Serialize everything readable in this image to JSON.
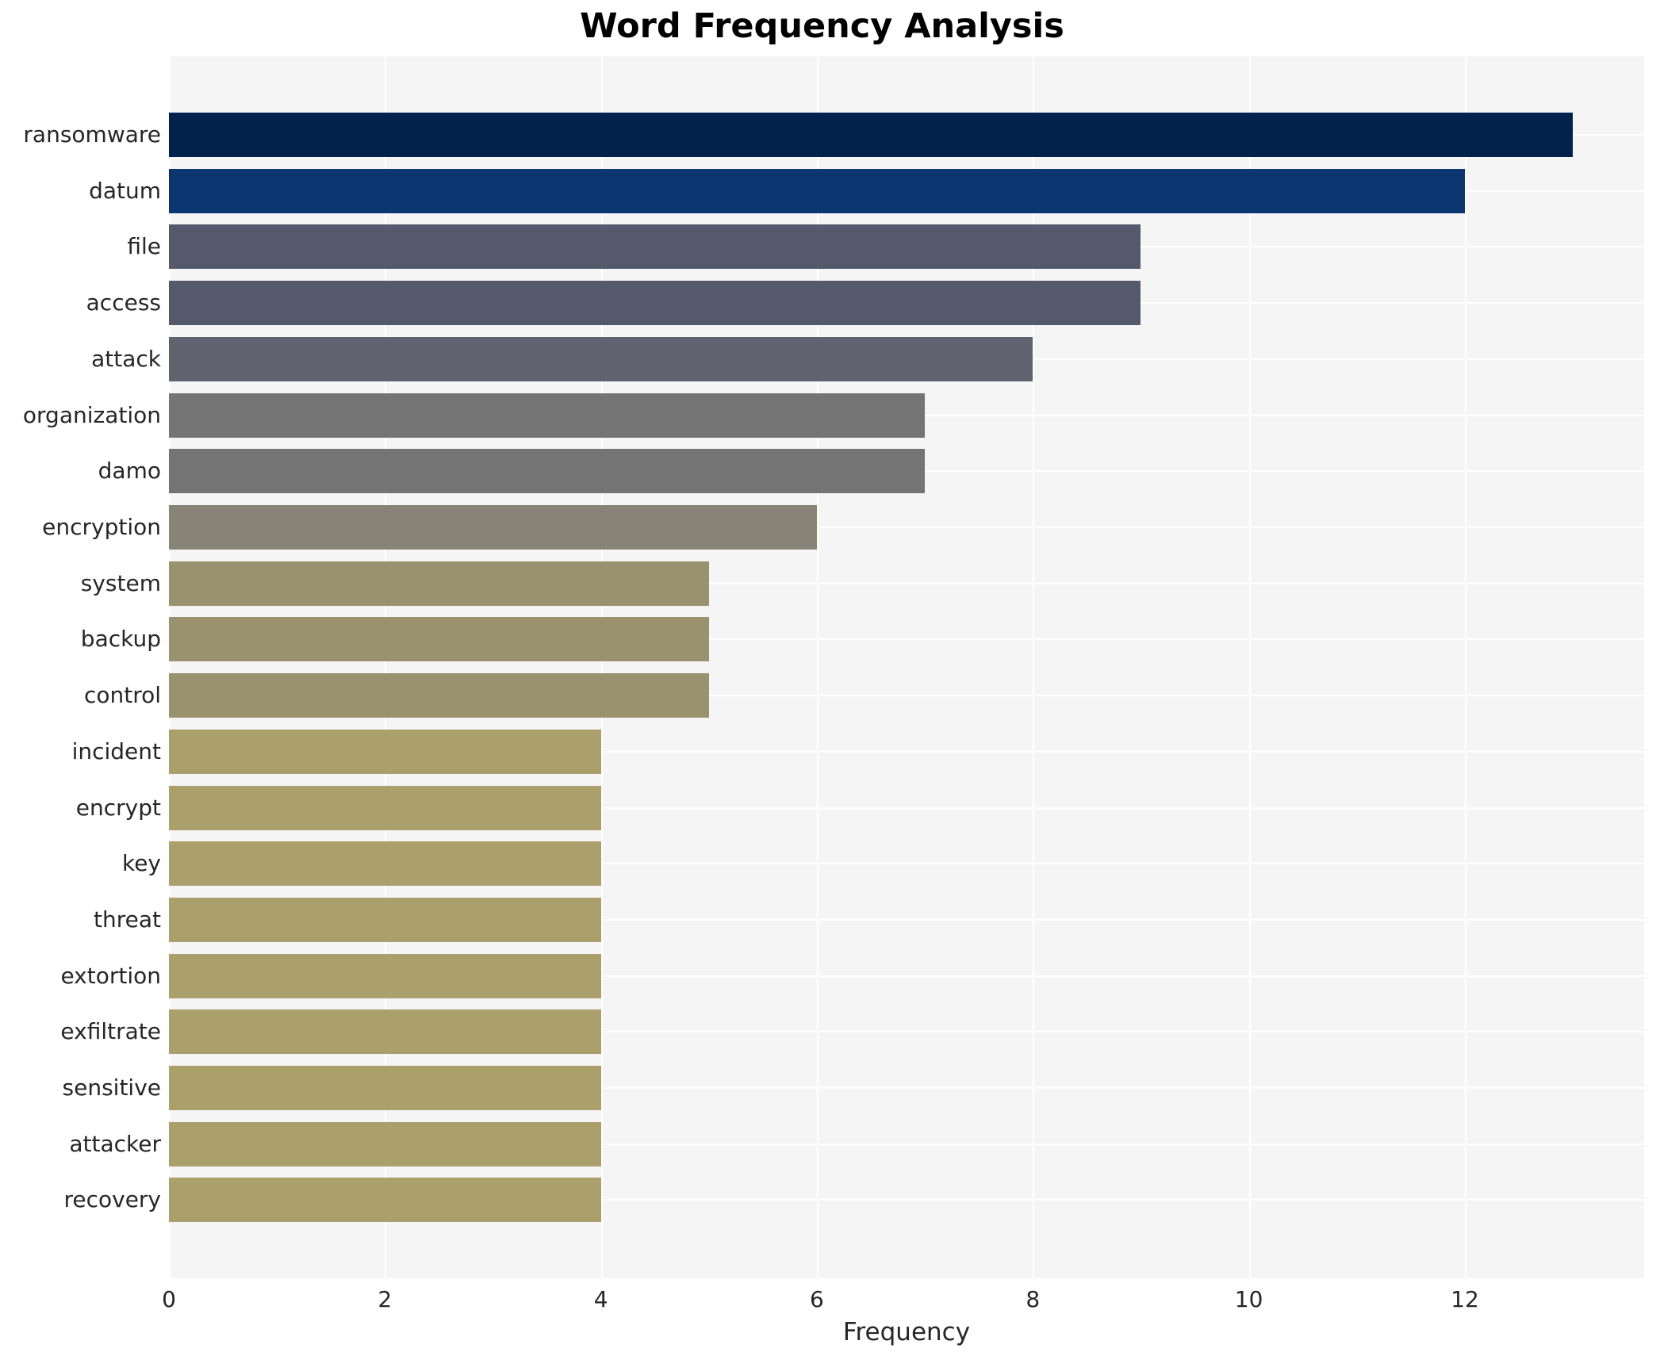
{
  "header": {
    "title": "Word Frequency Analysis"
  },
  "axes": {
    "xlabel": "Frequency"
  },
  "chart_data": {
    "type": "bar",
    "orientation": "horizontal",
    "title": "Word Frequency Analysis",
    "xlabel": "Frequency",
    "ylabel": "",
    "categories": [
      "ransomware",
      "datum",
      "file",
      "access",
      "attack",
      "organization",
      "damo",
      "encryption",
      "system",
      "backup",
      "control",
      "incident",
      "encrypt",
      "key",
      "threat",
      "extortion",
      "exfiltrate",
      "sensitive",
      "attacker",
      "recovery"
    ],
    "values": [
      13,
      12,
      9,
      9,
      8,
      7,
      7,
      6,
      5,
      5,
      5,
      4,
      4,
      4,
      4,
      4,
      4,
      4,
      4,
      4
    ],
    "bar_colors": [
      "#00224d",
      "#0b366f",
      "#545a6b",
      "#545a6b",
      "#60636f",
      "#747474",
      "#747474",
      "#878377",
      "#9a926f",
      "#9a926f",
      "#9a926f",
      "#ab9f6b",
      "#ab9f6b",
      "#ab9f6b",
      "#ab9f6b",
      "#ab9f6b",
      "#ab9f6b",
      "#ab9f6b",
      "#ab9f6b",
      "#ab9f6b"
    ],
    "xlim": [
      0,
      13.66
    ],
    "xticks": [
      0,
      2,
      4,
      6,
      8,
      10,
      12
    ],
    "grid": "on",
    "gridline_color": "#ffffff",
    "plot_bg_color": "#f5f5f6",
    "label_color": "#262626",
    "legend": "none"
  }
}
